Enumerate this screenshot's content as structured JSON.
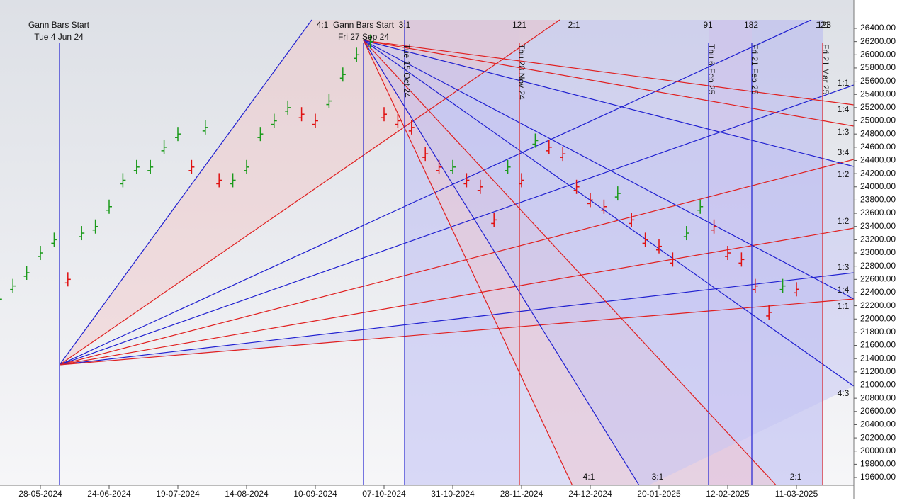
{
  "chart_data": {
    "type": "ohlc",
    "categories": [
      null,
      null,
      null,
      "28-05-2024",
      null,
      null,
      null,
      null,
      "24-06-2024",
      null,
      null,
      null,
      null,
      "19-07-2024",
      null,
      null,
      null,
      null,
      "14-08-2024",
      null,
      null,
      null,
      null,
      "10-09-2024",
      null,
      null,
      null,
      null,
      "07-10-2024",
      null,
      null,
      null,
      null,
      "31-10-2024",
      null,
      null,
      null,
      null,
      "28-11-2024",
      null,
      null,
      null,
      null,
      "24-12-2024",
      null,
      null,
      null,
      null,
      "20-01-2025",
      null,
      null,
      null,
      null,
      "12-02-2025",
      null,
      null,
      null,
      null,
      "11-03-2025"
    ],
    "values": [
      22300,
      22500,
      22700,
      23000,
      23200,
      22600,
      23300,
      23400,
      23700,
      24100,
      24300,
      24300,
      24600,
      24800,
      24300,
      24900,
      24100,
      24100,
      24300,
      24800,
      25000,
      25200,
      25100,
      25000,
      25300,
      25700,
      26000,
      26200,
      25100,
      25000,
      24900,
      24500,
      24300,
      24300,
      24100,
      24000,
      23500,
      24300,
      24100,
      24700,
      24600,
      24500,
      24000,
      23800,
      23700,
      23900,
      23500,
      23200,
      23100,
      22900,
      23300,
      23700,
      23400,
      23000,
      22900,
      22500,
      22100,
      22500,
      22450
    ],
    "up_color": "#1a9a1a",
    "down_color": "#e01010",
    "ylim": [
      19500,
      26500
    ],
    "yticks": [
      {
        "value": 19600,
        "label": "19600.00"
      },
      {
        "value": 19800,
        "label": "19800.00"
      },
      {
        "value": 20000,
        "label": "20000.00"
      },
      {
        "value": 20200,
        "label": "20200.00"
      },
      {
        "value": 20400,
        "label": "20400.00"
      },
      {
        "value": 20600,
        "label": "20600.00"
      },
      {
        "value": 20800,
        "label": "20800.00"
      },
      {
        "value": 21000,
        "label": "21000.00"
      },
      {
        "value": 21200,
        "label": "21200.00"
      },
      {
        "value": 21400,
        "label": "21400.00"
      },
      {
        "value": 21600,
        "label": "21600.00"
      },
      {
        "value": 21800,
        "label": "21800.00"
      },
      {
        "value": 22000,
        "label": "22000.00"
      },
      {
        "value": 22200,
        "label": "22200.00"
      },
      {
        "value": 22400,
        "label": "22400.00"
      },
      {
        "value": 22600,
        "label": "22600.00"
      },
      {
        "value": 22800,
        "label": "22800.00"
      },
      {
        "value": 23000,
        "label": "23000.00"
      },
      {
        "value": 23200,
        "label": "23200.00"
      },
      {
        "value": 23400,
        "label": "23400.00"
      },
      {
        "value": 23600,
        "label": "23600.00"
      },
      {
        "value": 23800,
        "label": "23800.00"
      },
      {
        "value": 24000,
        "label": "24000.00"
      },
      {
        "value": 24200,
        "label": "24200.00"
      },
      {
        "value": 24400,
        "label": "24400.00"
      },
      {
        "value": 24600,
        "label": "24600.00"
      },
      {
        "value": 24800,
        "label": "24800.00"
      },
      {
        "value": 25000,
        "label": "25000.00"
      },
      {
        "value": 25200,
        "label": "25200.00"
      },
      {
        "value": 25400,
        "label": "25400.00"
      },
      {
        "value": 25600,
        "label": "25600.00"
      },
      {
        "value": 25800,
        "label": "25800.00"
      },
      {
        "value": 26000,
        "label": "26000.00"
      },
      {
        "value": 26200,
        "label": "26200.00"
      },
      {
        "value": 26400,
        "label": "26400.00"
      }
    ],
    "annotations": [
      "Gann Bars Start",
      "Tue 4 Jun 24",
      "4:1",
      "Gann Bars Start",
      "3:1",
      "Fri 27 Sep 24",
      "121",
      "2:1",
      "91",
      "182",
      "121",
      "123",
      "Tue 15 Oct 24",
      "Thu 28 Nov 24",
      "Thu 6 Feb 25",
      "Fri 21 Feb 25",
      "Fri 21 Mar 25",
      "1:1",
      "1:4",
      "1:3",
      "3:4",
      "1:2",
      "1:2",
      "1:3",
      "1:4",
      "1:1",
      "4:3",
      "4:1",
      "3:1",
      "2:1"
    ]
  }
}
